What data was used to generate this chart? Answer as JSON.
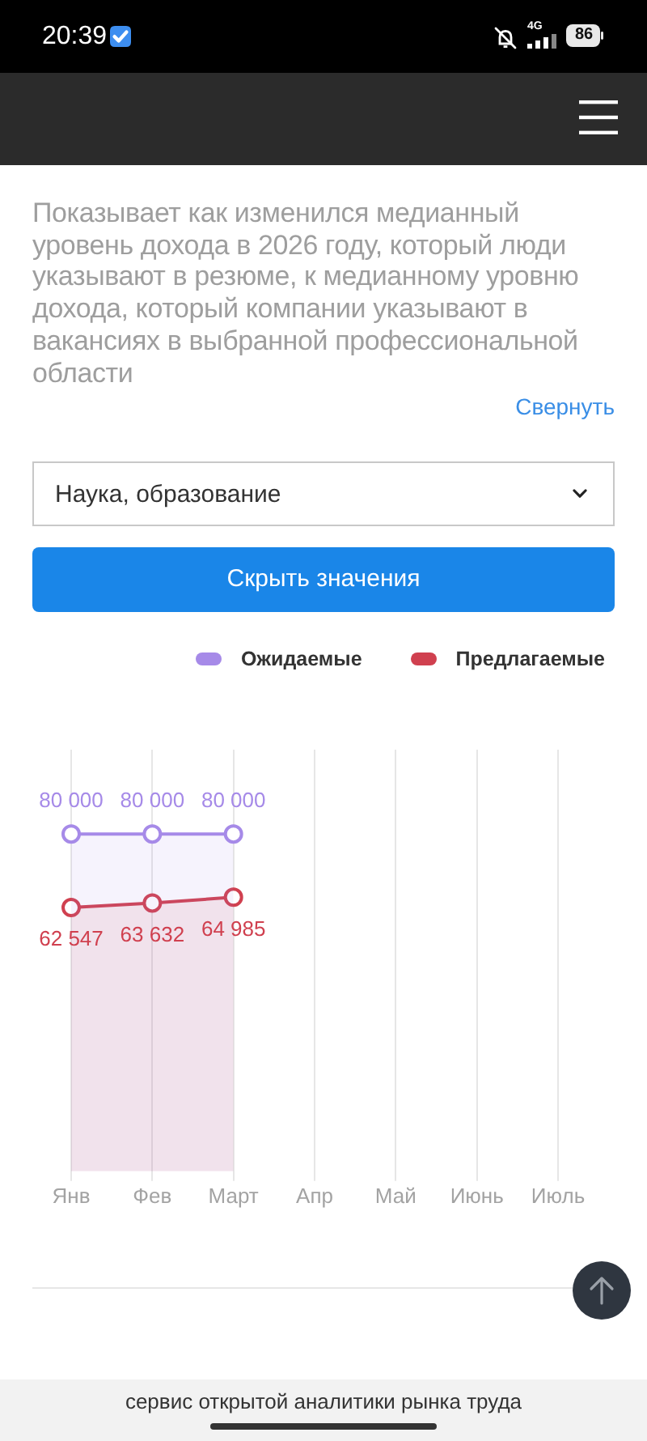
{
  "chart_data": {
    "type": "area",
    "subtitle": "Показывает как изменился медианный уровень дохода в 2026 году, который люди указывают в резюме, к медианному уровню дохода, который компании указывают в вакансиях в выбранной профессиональной области",
    "categories": [
      "Янв",
      "Фев",
      "Март",
      "Апр",
      "Май",
      "Июнь",
      "Июль"
    ],
    "series": [
      {
        "name": "Ожидаемые",
        "color": "#a68ae8",
        "values": [
          80000,
          80000,
          80000,
          null,
          null,
          null,
          null
        ]
      },
      {
        "name": "Предлагаемые",
        "color": "#d0404f",
        "values": [
          62547,
          63632,
          64985,
          null,
          null,
          null,
          null
        ]
      }
    ],
    "data_labels": true,
    "grid": "x",
    "tick_labels": "x",
    "legend": "top right",
    "marker": "circle",
    "annotations": [
      "20:39",
      "4G",
      "86",
      "Свернуть",
      "Наука, образование",
      "Скрыть значения",
      "сервис открытой аналитики рынка труда"
    ]
  }
}
